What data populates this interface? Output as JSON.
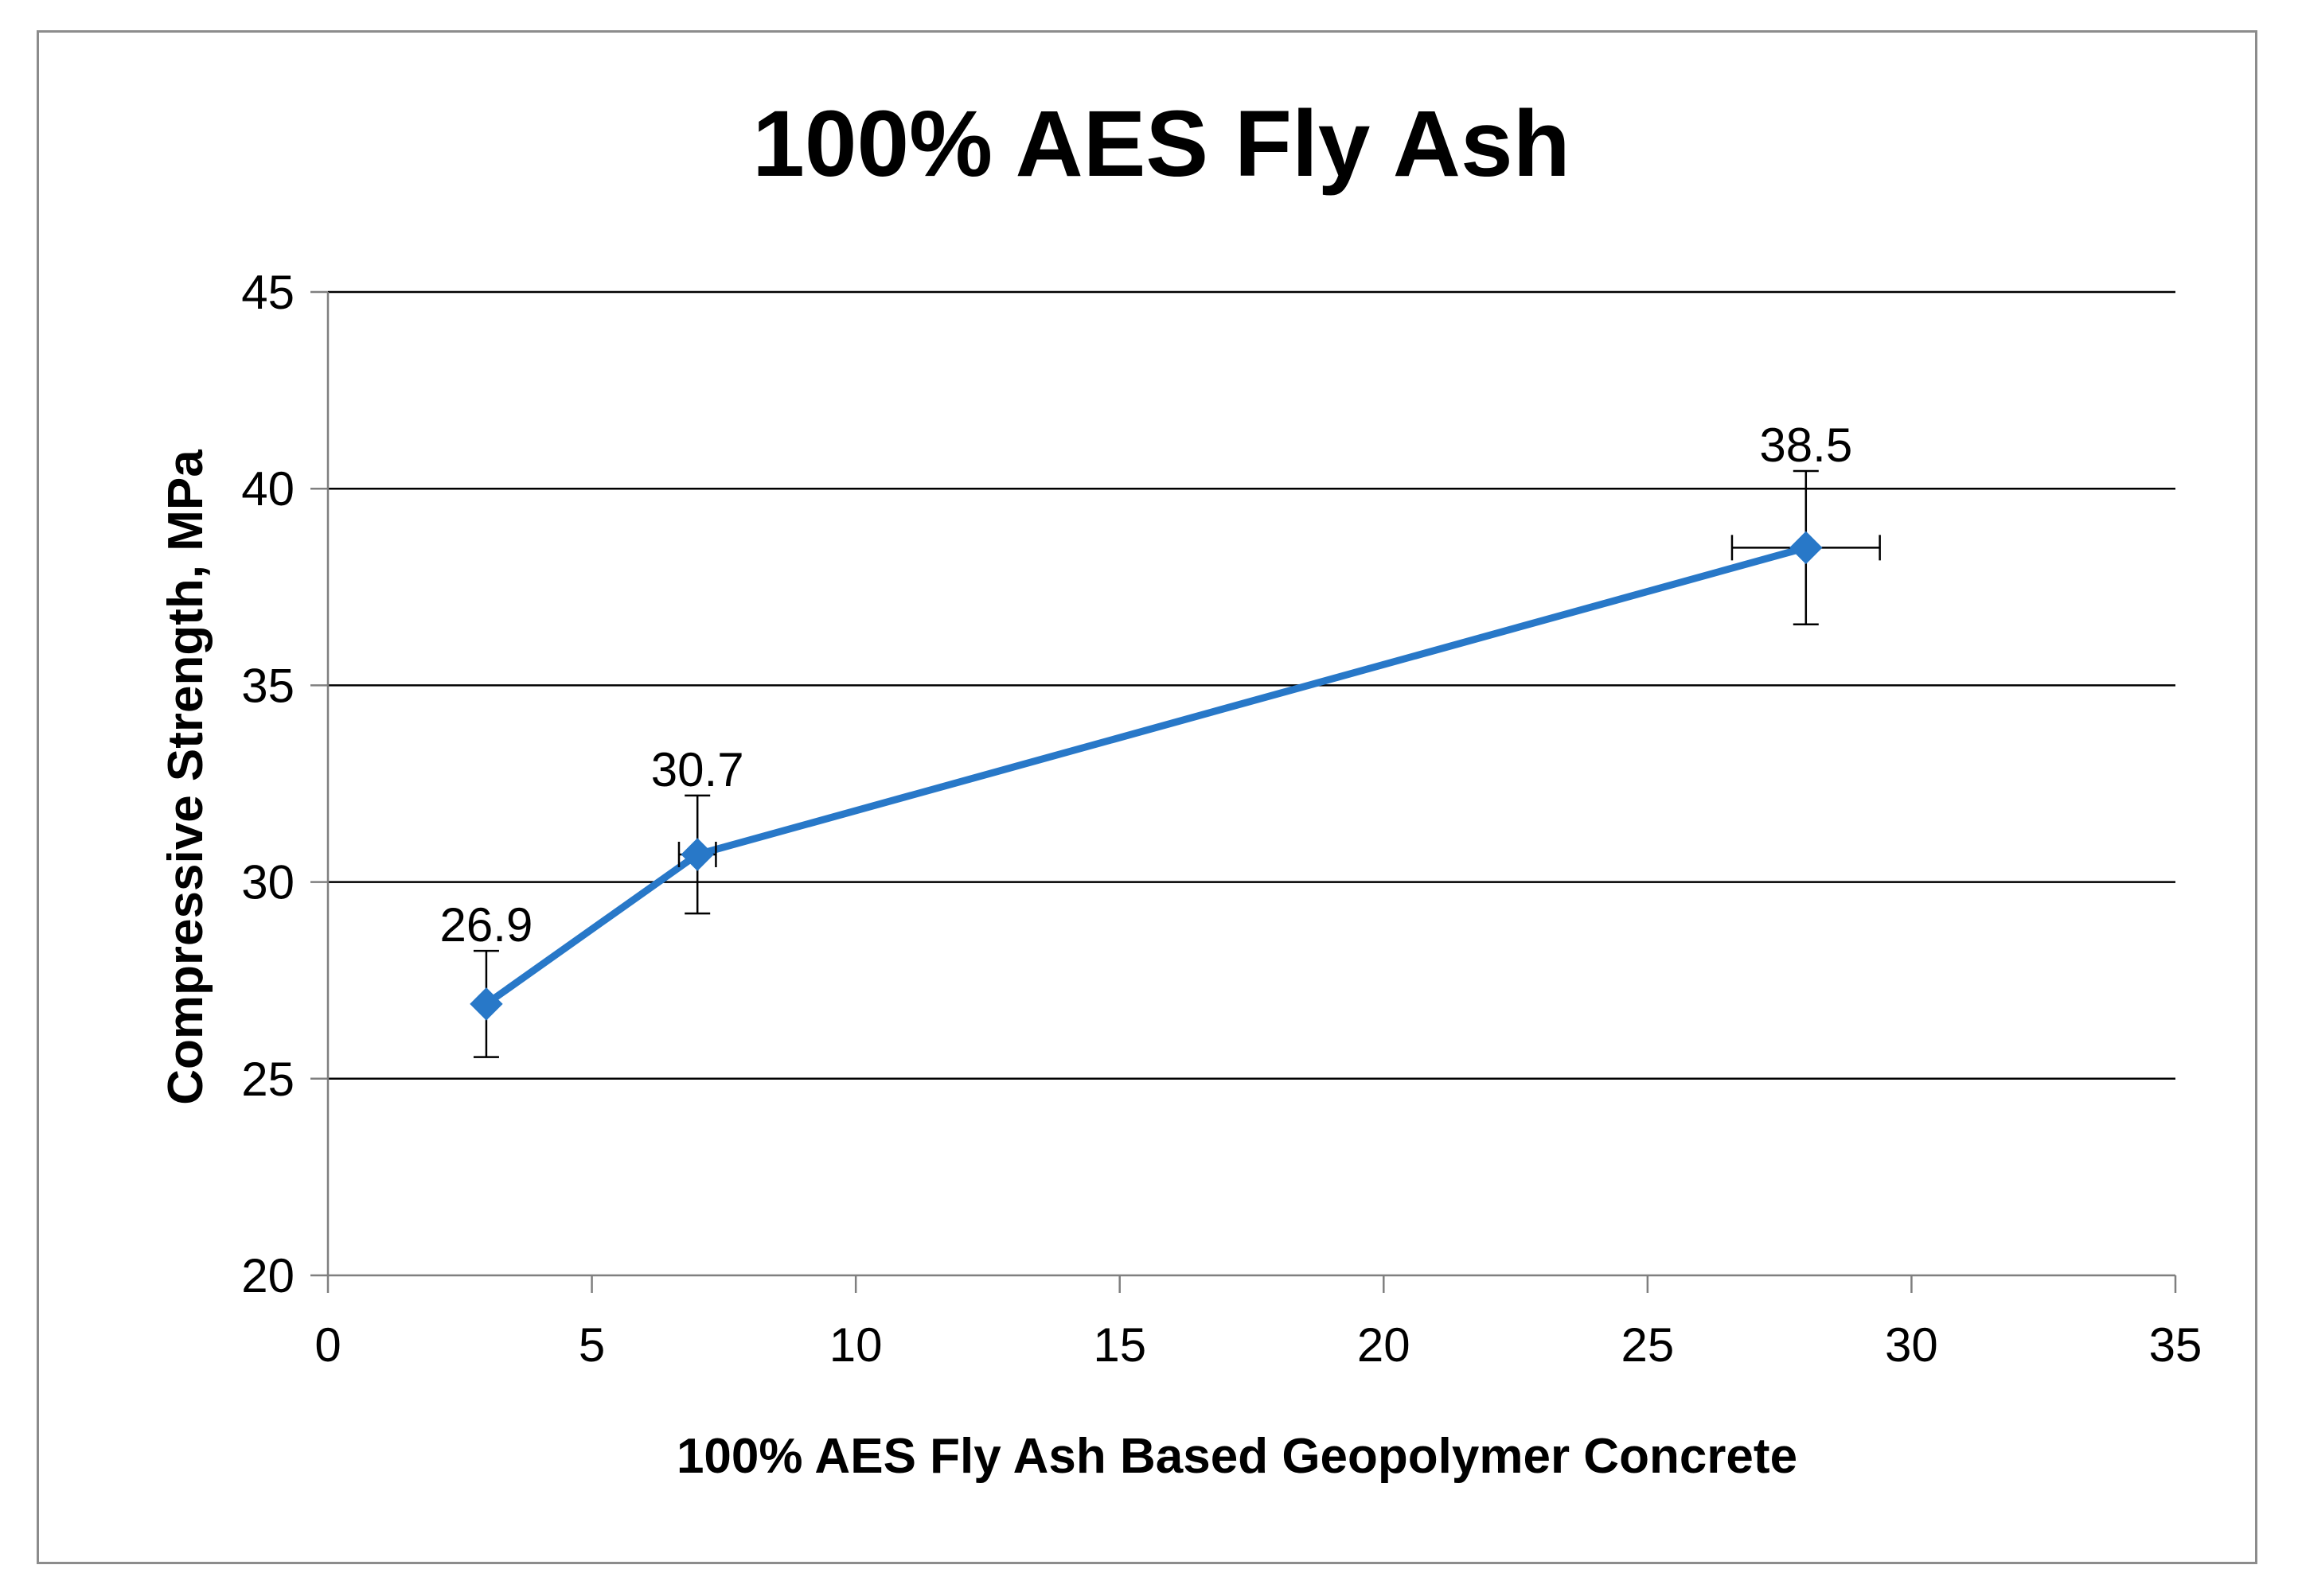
{
  "chart_data": {
    "type": "line",
    "title": "100% AES Fly Ash",
    "xlabel": "100% AES Fly Ash Based Geopolymer Concrete",
    "ylabel": "Compressive Strength, MPa",
    "xlim": [
      0,
      35
    ],
    "ylim": [
      20,
      45
    ],
    "xticks": [
      0,
      5,
      10,
      15,
      20,
      25,
      30,
      35
    ],
    "yticks": [
      20,
      25,
      30,
      35,
      40,
      45
    ],
    "grid": {
      "horizontal": true,
      "vertical": false
    },
    "legend": "none",
    "series": [
      {
        "color": "#2878c8",
        "marker": "diamond",
        "points": [
          {
            "x": 3,
            "y": 26.9,
            "label": "26.9",
            "y_err": 1.35,
            "x_err": 0
          },
          {
            "x": 7,
            "y": 30.7,
            "label": "30.7",
            "y_err": 1.5,
            "x_err": 0.35
          },
          {
            "x": 28,
            "y": 38.5,
            "label": "38.5",
            "y_err": 1.95,
            "x_err": 1.4
          }
        ]
      }
    ]
  }
}
